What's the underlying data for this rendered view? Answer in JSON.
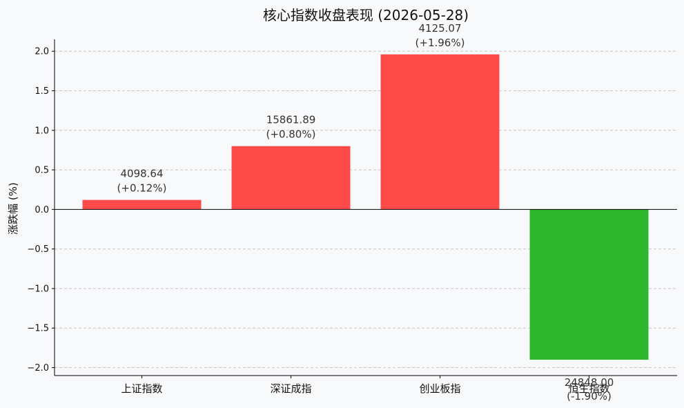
{
  "chart_data": {
    "type": "bar",
    "title": "核心指数收盘表现 (2026-05-28)",
    "ylabel": "涨跌幅 (%)",
    "xlabel": "",
    "ylim": [
      -2.1,
      2.15
    ],
    "yticks": [
      -2.0,
      -1.5,
      -1.0,
      -0.5,
      0.0,
      0.5,
      1.0,
      1.5,
      2.0
    ],
    "ytick_labels": [
      "−2.0",
      "−1.5",
      "−1.0",
      "−0.5",
      "0.0",
      "0.5",
      "1.0",
      "1.5",
      "2.0"
    ],
    "grid": true,
    "categories": [
      "上证指数",
      "深证成指",
      "创业板指",
      "恒生指数"
    ],
    "values": [
      0.12,
      0.8,
      1.96,
      -1.9
    ],
    "price_labels": [
      "4098.64",
      "15861.89",
      "4125.07",
      "24848.00"
    ],
    "change_labels": [
      "(+0.12%)",
      "(+0.80%)",
      "(+1.96%)",
      "(-1.90%)"
    ],
    "colors": {
      "up": "#ff4a4a",
      "down": "#2eb82e"
    }
  }
}
